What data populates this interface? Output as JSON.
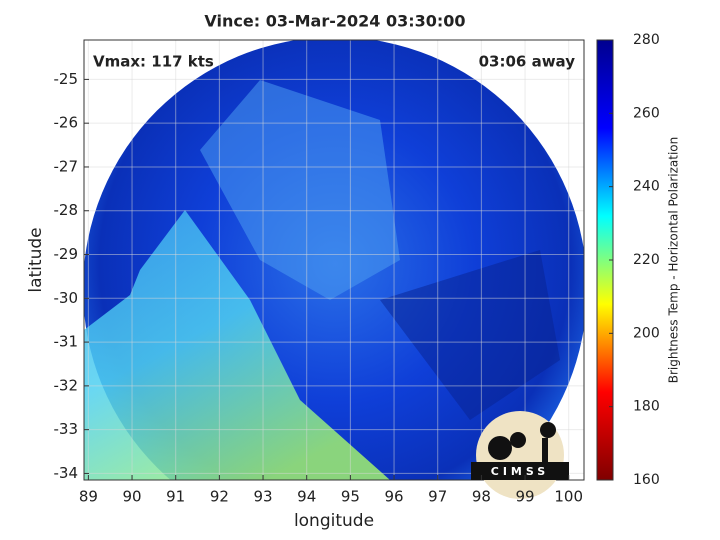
{
  "chart_data": {
    "type": "image",
    "title": "Vince: 03-Mar-2024 03:30:00",
    "xlabel": "longitude",
    "ylabel": "latitude",
    "xlim": [
      88.9,
      100.35
    ],
    "ylim": [
      -34.15,
      -24.1
    ],
    "xticks": [
      89,
      90,
      91,
      92,
      93,
      94,
      95,
      96,
      97,
      98,
      99,
      100
    ],
    "yticks": [
      -25,
      -26,
      -27,
      -28,
      -29,
      -30,
      -31,
      -32,
      -33,
      -34
    ],
    "grid": true,
    "annotations": [
      "Vmax: 117 kts",
      "03:06 away"
    ],
    "colorbar": {
      "label": "Brightness Temp - Horizontal Polarization",
      "lim": [
        160,
        280
      ],
      "ticks": [
        160,
        180,
        200,
        220,
        240,
        260,
        280
      ],
      "colormap": "jet"
    },
    "logo": "CIMSS"
  }
}
